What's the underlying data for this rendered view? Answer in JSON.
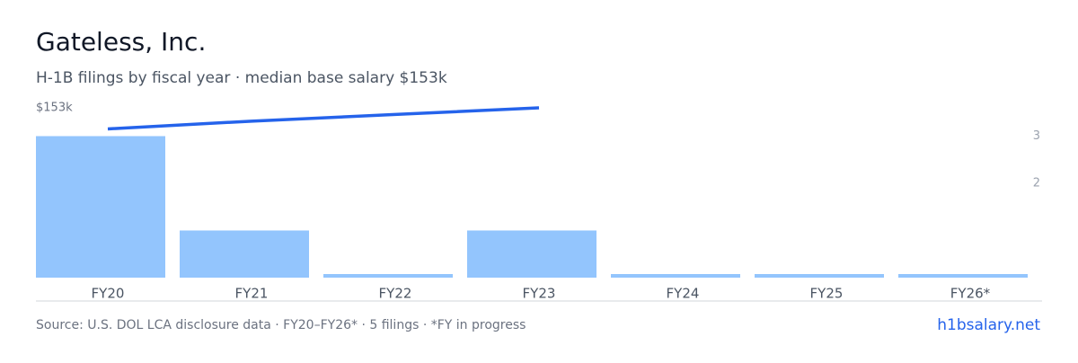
{
  "chart_data": {
    "type": "bar",
    "title": "Gateless, Inc.",
    "subtitle": "H-1B filings by fiscal year · median base salary $153k",
    "categories": [
      "FY20",
      "FY21",
      "FY22",
      "FY23",
      "FY24",
      "FY25",
      "FY26*"
    ],
    "series": [
      {
        "name": "H-1B filings",
        "color": "#93c5fd",
        "values": [
          3,
          1,
          0,
          1,
          0,
          0,
          0
        ]
      },
      {
        "name": "Median base salary",
        "color": "#2563eb",
        "axis": "y2",
        "type": "line",
        "values": [
          134,
          141,
          147,
          153,
          null,
          null,
          null
        ]
      }
    ],
    "ylim": [
      0,
      3.6
    ],
    "yticks": [
      2,
      3
    ],
    "y2lim": [
      0,
      153
    ],
    "y2ticks": [
      {
        "value": 153,
        "label": "$153k"
      }
    ],
    "source": "Source: U.S. DOL LCA disclosure data · FY20–FY26* · 5 filings · *FY in progress",
    "site": "h1bsalary.net"
  }
}
